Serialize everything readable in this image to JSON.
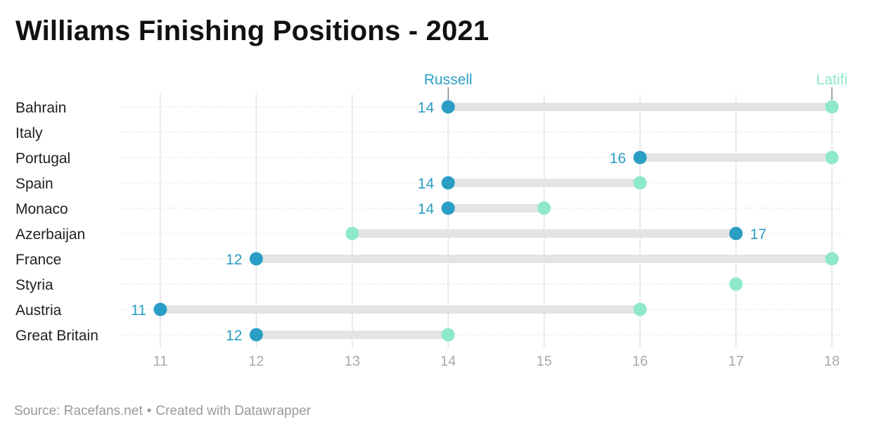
{
  "title": "Williams Finishing Positions - 2021",
  "footer": {
    "source": "Source: Racefans.net",
    "separator": "•",
    "credit": "Created with Datawrapper"
  },
  "colors": {
    "russell": "#2a9ec4",
    "latifi": "#8ee8cc",
    "bar": "#e4e4e4",
    "grid": "#e3e3e3",
    "tick": "#aaaaaa",
    "label": "#1f1f1f"
  },
  "chart_data": {
    "type": "range-dot",
    "title": "Williams Finishing Positions - 2021",
    "xlim": [
      11,
      18
    ],
    "x_ticks": [
      11,
      12,
      13,
      14,
      15,
      16,
      17,
      18
    ],
    "grid": true,
    "series": [
      {
        "name": "Russell",
        "color": "#2a9ec4"
      },
      {
        "name": "Latifi",
        "color": "#8ee8cc"
      }
    ],
    "categories": [
      "Bahrain",
      "Italy",
      "Portugal",
      "Spain",
      "Monaco",
      "Azerbaijan",
      "France",
      "Styria",
      "Austria",
      "Great Britain"
    ],
    "russell": [
      14,
      null,
      16,
      14,
      14,
      17,
      12,
      null,
      11,
      12
    ],
    "latifi": [
      18,
      null,
      18,
      16,
      15,
      13,
      18,
      17,
      16,
      14
    ]
  }
}
